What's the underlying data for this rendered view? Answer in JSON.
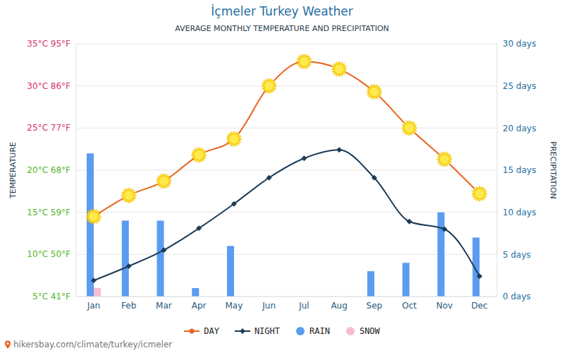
{
  "chart_data": {
    "type": "combo",
    "title": "İçmeler Turkey Weather",
    "subtitle": "AVERAGE MONTHLY TEMPERATURE AND PRECIPITATION",
    "source": "hikersbay.com/climate/turkey/icmeler",
    "y_label": "TEMPERATURE",
    "y2_label": "PRECIPITATION",
    "categories": [
      "Jan",
      "Feb",
      "Mar",
      "Apr",
      "May",
      "Jun",
      "Jul",
      "Aug",
      "Sep",
      "Oct",
      "Nov",
      "Dec"
    ],
    "ylim": [
      5,
      35
    ],
    "yticks": [
      {
        "value": 5,
        "label": "5°C 41°F"
      },
      {
        "value": 10,
        "label": "10°C 50°F"
      },
      {
        "value": 15,
        "label": "15°C 59°F"
      },
      {
        "value": 20,
        "label": "20°C 68°F"
      },
      {
        "value": 25,
        "label": "25°C 77°F"
      },
      {
        "value": 30,
        "label": "30°C 86°F"
      },
      {
        "value": 35,
        "label": "35°C 95°F"
      }
    ],
    "y2lim": [
      0,
      30
    ],
    "y2ticks": [
      {
        "value": 0,
        "label": "0 days"
      },
      {
        "value": 5,
        "label": "5 days"
      },
      {
        "value": 10,
        "label": "10 days"
      },
      {
        "value": 15,
        "label": "15 days"
      },
      {
        "value": 20,
        "label": "20 days"
      },
      {
        "value": 25,
        "label": "25 days"
      },
      {
        "value": 30,
        "label": "30 days"
      }
    ],
    "grid": true,
    "legend": "bottom",
    "series": [
      {
        "name": "DAY",
        "type": "line",
        "color": "#e8631c",
        "marker": "sun",
        "values": [
          14.5,
          17,
          18.7,
          21.8,
          23.7,
          30,
          32.9,
          32,
          29.3,
          25,
          21.3,
          17.2
        ]
      },
      {
        "name": "NIGHT",
        "type": "line",
        "color": "#1c3b57",
        "marker": "diamond",
        "values": [
          6.9,
          8.6,
          10.5,
          13.1,
          16,
          19.1,
          21.4,
          22.4,
          19.1,
          13.9,
          13,
          7.4
        ]
      },
      {
        "name": "RAIN",
        "type": "bar",
        "axis": "y2",
        "color": "#5b9bf0",
        "values": [
          17,
          9,
          9,
          1,
          6,
          0,
          0,
          0,
          3,
          4,
          10,
          7
        ]
      },
      {
        "name": "SNOW",
        "type": "bar",
        "axis": "y2",
        "color": "#f7bcd0",
        "values": [
          1,
          0,
          0,
          0,
          0,
          0,
          0,
          0,
          0,
          0,
          0,
          0
        ]
      }
    ]
  }
}
